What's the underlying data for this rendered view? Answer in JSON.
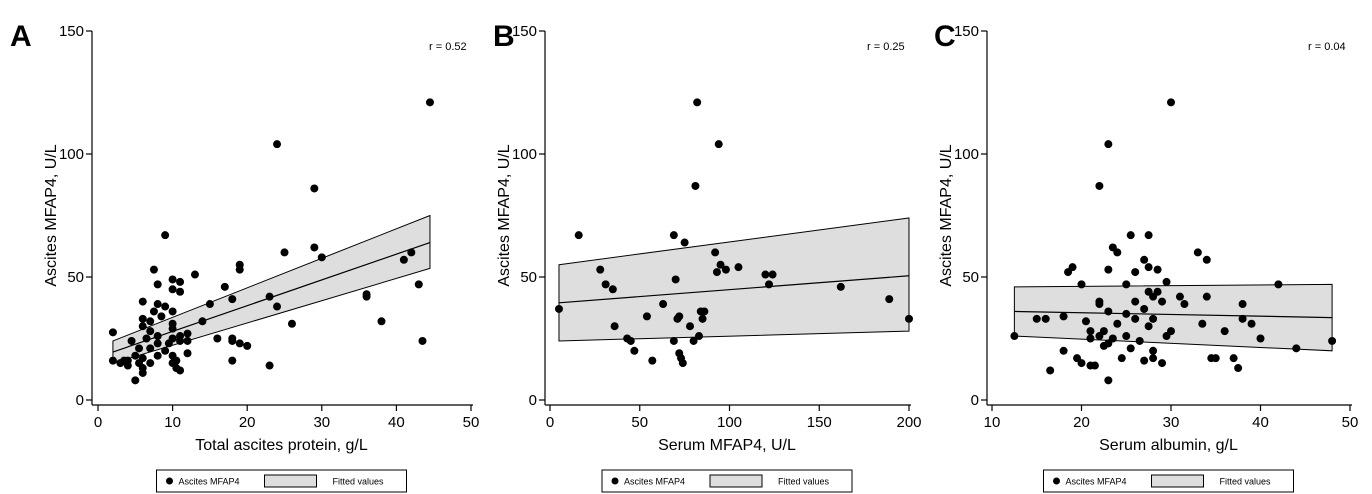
{
  "legend": {
    "points_label": "Ascites MFAP4",
    "fit_label": "Fitted values"
  },
  "chart_data": [
    {
      "type": "scatter",
      "panel_label": "A",
      "annotation": "r = 0.52",
      "xlabel": "Total ascites protein, g/L",
      "ylabel": "Ascites MFAP4, U/L",
      "xlim": [
        0,
        50
      ],
      "ylim": [
        0,
        150
      ],
      "x_ticks": [
        0,
        10,
        20,
        30,
        40,
        50
      ],
      "y_ticks": [
        0,
        50,
        100,
        150
      ],
      "fit": {
        "x0": 2,
        "x1": 44.5,
        "y0": 19.5,
        "y1": 64,
        "lower0": 15,
        "lower1": 53.5,
        "upper0": 24,
        "upper1": 75
      },
      "points": [
        [
          2,
          27.5
        ],
        [
          2,
          16
        ],
        [
          3,
          15
        ],
        [
          3.5,
          16
        ],
        [
          4,
          14
        ],
        [
          4,
          16
        ],
        [
          4.5,
          24
        ],
        [
          5,
          18
        ],
        [
          5,
          8
        ],
        [
          5.5,
          15
        ],
        [
          5.5,
          21
        ],
        [
          6,
          11
        ],
        [
          6,
          13
        ],
        [
          6,
          17
        ],
        [
          6,
          30
        ],
        [
          6,
          33
        ],
        [
          6,
          40
        ],
        [
          6.5,
          25
        ],
        [
          7,
          15
        ],
        [
          7,
          21
        ],
        [
          7,
          28
        ],
        [
          7,
          32
        ],
        [
          7.5,
          53
        ],
        [
          7.5,
          36
        ],
        [
          8,
          18
        ],
        [
          8,
          23
        ],
        [
          8,
          26
        ],
        [
          8,
          39
        ],
        [
          8,
          47
        ],
        [
          8.5,
          34
        ],
        [
          9,
          67
        ],
        [
          9,
          20
        ],
        [
          9,
          38
        ],
        [
          9.5,
          23
        ],
        [
          10,
          15
        ],
        [
          10,
          18
        ],
        [
          10,
          25
        ],
        [
          10,
          29
        ],
        [
          10,
          31
        ],
        [
          10,
          36
        ],
        [
          10,
          49
        ],
        [
          10,
          45
        ],
        [
          10.5,
          13
        ],
        [
          10.5,
          16
        ],
        [
          11,
          12
        ],
        [
          11,
          24
        ],
        [
          11,
          26
        ],
        [
          11,
          44
        ],
        [
          11,
          48
        ],
        [
          12,
          27
        ],
        [
          12,
          24
        ],
        [
          12,
          19
        ],
        [
          13,
          51
        ],
        [
          14,
          32
        ],
        [
          15,
          39
        ],
        [
          16,
          25
        ],
        [
          17,
          46
        ],
        [
          18,
          16
        ],
        [
          18,
          25
        ],
        [
          18,
          24
        ],
        [
          18,
          41
        ],
        [
          19,
          55
        ],
        [
          19,
          53
        ],
        [
          19,
          23
        ],
        [
          20,
          22
        ],
        [
          23,
          14
        ],
        [
          23,
          42
        ],
        [
          24,
          104
        ],
        [
          24,
          38
        ],
        [
          25,
          60
        ],
        [
          26,
          31
        ],
        [
          29,
          86
        ],
        [
          29,
          62
        ],
        [
          30,
          58
        ],
        [
          36,
          43
        ],
        [
          36,
          42
        ],
        [
          38,
          32
        ],
        [
          41,
          57
        ],
        [
          42,
          60
        ],
        [
          43,
          47
        ],
        [
          43.5,
          24
        ],
        [
          44.5,
          121
        ]
      ]
    },
    {
      "type": "scatter",
      "panel_label": "B",
      "annotation": "r = 0.25",
      "xlabel": "Serum MFAP4, U/L",
      "ylabel": "Ascites MFAP4, U/L",
      "xlim": [
        0,
        200
      ],
      "ylim": [
        0,
        150
      ],
      "x_ticks": [
        0,
        50,
        100,
        150,
        200
      ],
      "y_ticks": [
        0,
        50,
        100,
        150
      ],
      "fit": {
        "x0": 5,
        "x1": 200,
        "y0": 39.5,
        "y1": 50.5,
        "lower0": 24,
        "lower1": 28,
        "upper0": 55,
        "upper1": 74
      },
      "points": [
        [
          5,
          37
        ],
        [
          16,
          67
        ],
        [
          28,
          53
        ],
        [
          31,
          47
        ],
        [
          35,
          45
        ],
        [
          36,
          30
        ],
        [
          43,
          25
        ],
        [
          45,
          24
        ],
        [
          47,
          20
        ],
        [
          54,
          34
        ],
        [
          57,
          16
        ],
        [
          63,
          39
        ],
        [
          69,
          67
        ],
        [
          69,
          24
        ],
        [
          70,
          49
        ],
        [
          71,
          33
        ],
        [
          72,
          19
        ],
        [
          72,
          34
        ],
        [
          73,
          17
        ],
        [
          74,
          15
        ],
        [
          75,
          64
        ],
        [
          78,
          30
        ],
        [
          80,
          24
        ],
        [
          81,
          87
        ],
        [
          82,
          121
        ],
        [
          83,
          26
        ],
        [
          84,
          36
        ],
        [
          85,
          33
        ],
        [
          86,
          36
        ],
        [
          92,
          60
        ],
        [
          93,
          52
        ],
        [
          94,
          104
        ],
        [
          95,
          55
        ],
        [
          98,
          53
        ],
        [
          105,
          54
        ],
        [
          120,
          51
        ],
        [
          122,
          47
        ],
        [
          124,
          51
        ],
        [
          162,
          46
        ],
        [
          189,
          41
        ],
        [
          200,
          33
        ]
      ]
    },
    {
      "type": "scatter",
      "panel_label": "C",
      "annotation": "r = 0.04",
      "xlabel": "Serum albumin, g/L",
      "ylabel": "Ascites MFAP4, U/L",
      "xlim": [
        10,
        50
      ],
      "ylim": [
        0,
        150
      ],
      "x_ticks": [
        10,
        20,
        30,
        40,
        50
      ],
      "y_ticks": [
        0,
        50,
        100,
        150
      ],
      "fit": {
        "x0": 12.5,
        "x1": 48,
        "y0": 36,
        "y1": 33.5,
        "lower0": 26,
        "lower1": 20,
        "upper0": 46,
        "upper1": 47
      },
      "points": [
        [
          12.5,
          26
        ],
        [
          15,
          33
        ],
        [
          16,
          33
        ],
        [
          16.5,
          12
        ],
        [
          18,
          34
        ],
        [
          18,
          20
        ],
        [
          18.5,
          52
        ],
        [
          19,
          54
        ],
        [
          19.5,
          17
        ],
        [
          20,
          15
        ],
        [
          20,
          47
        ],
        [
          20.5,
          32
        ],
        [
          21,
          14
        ],
        [
          21,
          25
        ],
        [
          21,
          28
        ],
        [
          21.5,
          14
        ],
        [
          22,
          87
        ],
        [
          22,
          40
        ],
        [
          22,
          39
        ],
        [
          22,
          26
        ],
        [
          22.5,
          28
        ],
        [
          22.5,
          22
        ],
        [
          23,
          104
        ],
        [
          23,
          53
        ],
        [
          23,
          36
        ],
        [
          23,
          23
        ],
        [
          23,
          8
        ],
        [
          23.5,
          62
        ],
        [
          23.5,
          25
        ],
        [
          24,
          60
        ],
        [
          24,
          31
        ],
        [
          24.5,
          17
        ],
        [
          25,
          47
        ],
        [
          25,
          35
        ],
        [
          25,
          26
        ],
        [
          25.5,
          67
        ],
        [
          25.5,
          21
        ],
        [
          26,
          52
        ],
        [
          26,
          40
        ],
        [
          26,
          33
        ],
        [
          26.5,
          24
        ],
        [
          27,
          57
        ],
        [
          27,
          37
        ],
        [
          27,
          16
        ],
        [
          27.5,
          67
        ],
        [
          27.5,
          54
        ],
        [
          27.5,
          44
        ],
        [
          27.5,
          30
        ],
        [
          28,
          42
        ],
        [
          28,
          33
        ],
        [
          28,
          20
        ],
        [
          28,
          17
        ],
        [
          28.5,
          53
        ],
        [
          28.5,
          44
        ],
        [
          29,
          40
        ],
        [
          29,
          15
        ],
        [
          29.5,
          48
        ],
        [
          29.5,
          26
        ],
        [
          30,
          121
        ],
        [
          30,
          28
        ],
        [
          31,
          42
        ],
        [
          31.5,
          39
        ],
        [
          33,
          60
        ],
        [
          33.5,
          31
        ],
        [
          34,
          57
        ],
        [
          34,
          42
        ],
        [
          34.5,
          17
        ],
        [
          35,
          17
        ],
        [
          36,
          28
        ],
        [
          37,
          17
        ],
        [
          37.5,
          13
        ],
        [
          38,
          39
        ],
        [
          38,
          33
        ],
        [
          39,
          31
        ],
        [
          40,
          25
        ],
        [
          42,
          47
        ],
        [
          44,
          21
        ],
        [
          48,
          24
        ]
      ]
    }
  ]
}
